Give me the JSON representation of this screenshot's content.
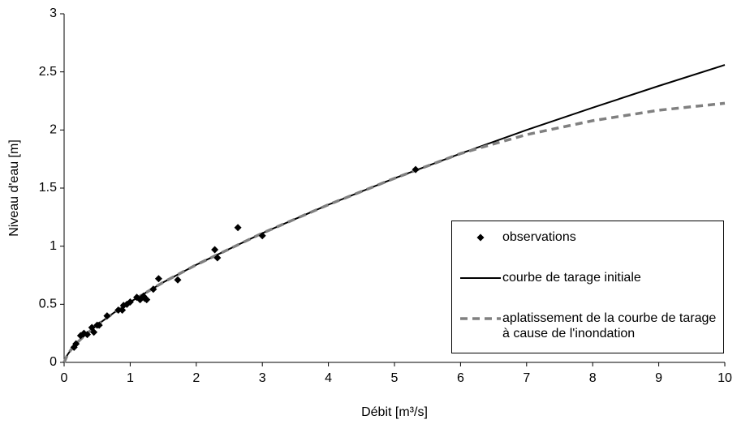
{
  "chart_data": {
    "type": "scatter-line",
    "x_label": "Débit [m³/s]",
    "y_label": "Niveau d'eau [m]",
    "xlim": [
      0,
      10
    ],
    "xticks": [
      0,
      1,
      2,
      3,
      4,
      5,
      6,
      7,
      8,
      9,
      10
    ],
    "ylim": [
      0,
      3
    ],
    "yticks": [
      0,
      0.5,
      1,
      1.5,
      2,
      2.5,
      3
    ],
    "grid": false,
    "series": [
      {
        "name": "observations",
        "kind": "scatter",
        "color": "#000000",
        "x": [
          0.15,
          0.18,
          0.25,
          0.3,
          0.35,
          0.42,
          0.45,
          0.5,
          0.53,
          0.65,
          0.82,
          0.88,
          0.9,
          0.95,
          1.0,
          1.1,
          1.15,
          1.2,
          1.22,
          1.25,
          1.35,
          1.43,
          1.72,
          2.28,
          2.32,
          2.63,
          3.0,
          5.32
        ],
        "values": [
          0.13,
          0.16,
          0.23,
          0.25,
          0.24,
          0.3,
          0.26,
          0.32,
          0.32,
          0.4,
          0.45,
          0.45,
          0.49,
          0.5,
          0.52,
          0.56,
          0.54,
          0.57,
          0.55,
          0.54,
          0.63,
          0.72,
          0.71,
          0.97,
          0.9,
          1.16,
          1.09,
          1.66
        ]
      },
      {
        "name": "courbe de tarage initiale",
        "kind": "line",
        "color": "#000000",
        "x": [
          0,
          0.05,
          0.1,
          0.2,
          0.3,
          0.5,
          0.75,
          1,
          1.5,
          2,
          3,
          4,
          5,
          6,
          7,
          8,
          9,
          10
        ],
        "values": [
          0,
          0.065,
          0.106,
          0.171,
          0.226,
          0.322,
          0.426,
          0.52,
          0.689,
          0.84,
          1.112,
          1.357,
          1.584,
          1.797,
          2.0,
          2.192,
          2.379,
          2.56
        ]
      },
      {
        "name": "aplatissement de la courbe de tarage à cause de l'inondation",
        "kind": "dashed",
        "color": "#808080",
        "x": [
          0,
          0.05,
          0.1,
          0.2,
          0.3,
          0.5,
          0.75,
          1,
          1.5,
          2,
          3,
          4,
          5,
          6,
          6.5,
          7,
          8,
          9,
          10
        ],
        "values": [
          0,
          0.065,
          0.106,
          0.171,
          0.226,
          0.322,
          0.426,
          0.52,
          0.689,
          0.84,
          1.112,
          1.357,
          1.584,
          1.797,
          1.88,
          1.96,
          2.08,
          2.17,
          2.23
        ]
      }
    ],
    "legend": "lower right"
  }
}
